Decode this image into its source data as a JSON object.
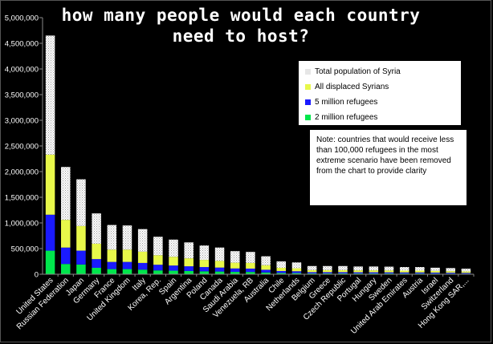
{
  "chart_data": {
    "type": "bar",
    "stacked": true,
    "title": "how many people would each country need to host?",
    "ylim": [
      0,
      5000000
    ],
    "yticks": [
      "0",
      "500,000",
      "1,000,000",
      "1,500,000",
      "2,000,000",
      "2,500,000",
      "3,000,000",
      "3,500,000",
      "4,000,000",
      "4,500,000",
      "5,000,000"
    ],
    "categories": [
      "United States",
      "Russian Federation",
      "Japan",
      "Germany",
      "France",
      "United Kingdom",
      "Italy",
      "Korea, Rep.",
      "Spain",
      "Argentina",
      "Poland",
      "Canada",
      "Saudi Arabia",
      "Venezuela, RB",
      "Australia",
      "Chile",
      "Netherlands",
      "Belgium",
      "Greece",
      "Czech Republic",
      "Portugal",
      "Hungary",
      "Sweden",
      "United Arab Emirates",
      "Austria",
      "Israel",
      "Switzerland",
      "Hong Kong SAR,..."
    ],
    "series": [
      {
        "name": "2 million refugees",
        "color": "#00e64c",
        "values": [
          460000,
          200000,
          190000,
          125000,
          100000,
          100000,
          90000,
          75000,
          70000,
          63000,
          57000,
          53000,
          46000,
          45000,
          35000,
          25000,
          23000,
          16000,
          16000,
          16000,
          15000,
          15000,
          15000,
          14000,
          14000,
          13000,
          12000,
          11000
        ]
      },
      {
        "name": "5 million refugees",
        "color": "#1a1aff",
        "values": [
          700000,
          320000,
          270000,
          170000,
          140000,
          140000,
          130000,
          110000,
          100000,
          92000,
          83000,
          77000,
          67000,
          65000,
          52000,
          38000,
          35000,
          24000,
          24000,
          24000,
          23000,
          23000,
          22000,
          21000,
          21000,
          19000,
          18000,
          16000
        ]
      },
      {
        "name": "All displaced Syrians",
        "color": "#e8f84a",
        "values": [
          1170000,
          540000,
          480000,
          300000,
          240000,
          240000,
          220000,
          185000,
          170000,
          155000,
          140000,
          130000,
          112000,
          110000,
          88000,
          62000,
          58000,
          40000,
          40000,
          40000,
          38000,
          38000,
          37000,
          35000,
          35000,
          32000,
          30000,
          27000
        ]
      },
      {
        "name": "Total population of Syria",
        "color": "#f2f2f2",
        "pattern": "dots",
        "values": [
          2320000,
          1030000,
          910000,
          590000,
          480000,
          470000,
          440000,
          360000,
          335000,
          310000,
          280000,
          260000,
          225000,
          215000,
          175000,
          125000,
          114000,
          80000,
          80000,
          80000,
          74000,
          74000,
          73000,
          70000,
          70000,
          63000,
          60000,
          54000
        ]
      }
    ],
    "legend_position": "top-right"
  },
  "legend": {
    "items": [
      {
        "label": "Total population of Syria",
        "color": "#f2f2f2"
      },
      {
        "label": "All displaced Syrians",
        "color": "#e8f84a"
      },
      {
        "label": "5 million refugees",
        "color": "#1a1aff"
      },
      {
        "label": "2 million refugees",
        "color": "#00e64c"
      }
    ]
  },
  "note": {
    "text": "Note:  countries that would receive less than 100,000 refugees in the most extreme scenario have been removed from the chart to provide clarity"
  }
}
